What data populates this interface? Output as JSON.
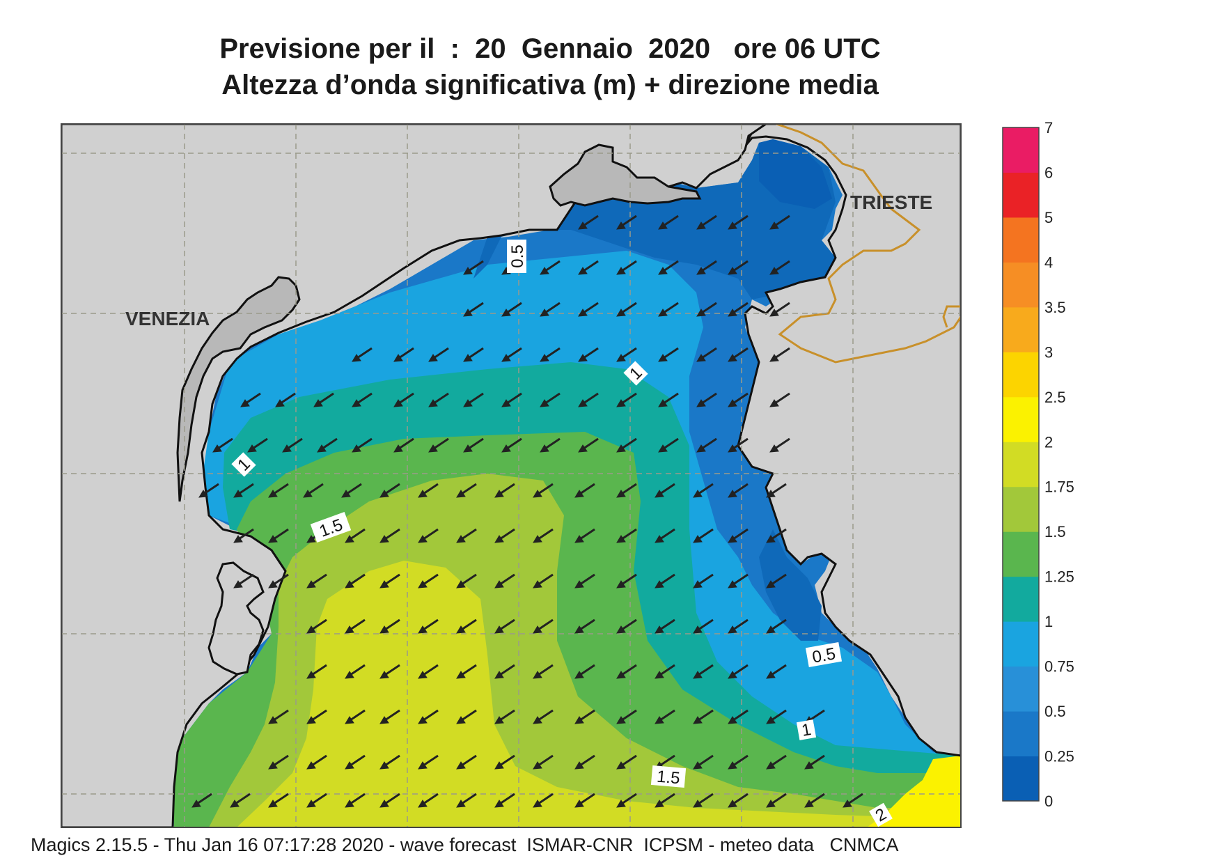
{
  "title": {
    "line1": "Previsione per il  :  20  Gennaio  2020   ore 06 UTC",
    "line2": "Altezza d’onda significativa (m) + direzione media"
  },
  "cities": [
    {
      "name": "VENEZIA"
    },
    {
      "name": "TRIESTE"
    }
  ],
  "contour_labels": [
    "0.5",
    "1",
    "1",
    "1.5",
    "0.5",
    "1",
    "1.5",
    "2"
  ],
  "colorbar": {
    "ticks": [
      "0",
      "0.25",
      "0.5",
      "0.75",
      "1",
      "1.25",
      "1.5",
      "1.75",
      "2",
      "2.5",
      "3",
      "3.5",
      "4",
      "5",
      "6",
      "7"
    ],
    "colors": [
      "#0a5fb4",
      "#1a78c8",
      "#2890d8",
      "#1aa4e0",
      "#12aa9e",
      "#5ab64e",
      "#a2c83a",
      "#d2dc24",
      "#fbf200",
      "#fcd400",
      "#f8aa1c",
      "#f68e24",
      "#f47420",
      "#ea2226",
      "#ea1c64"
    ]
  },
  "colors": {
    "land": "#d0d0d0",
    "lagoon": "#b8b8b8",
    "coast": "#111111",
    "border": "#c8902a",
    "grid": "#9a9a8a",
    "arrow": "#222222"
  },
  "footer": "Magics 2.15.5 - Thu Jan 16 07:17:28 2020 - wave forecast  ISMAR-CNR  ICPSM - meteo data   CNMCA"
}
